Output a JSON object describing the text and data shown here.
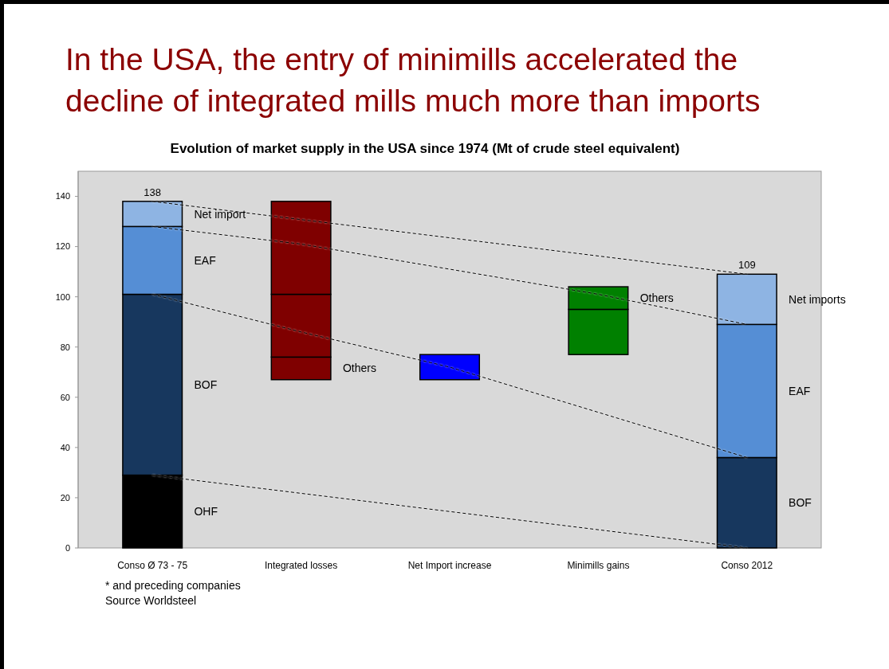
{
  "chart_data": {
    "type": "bar",
    "title": "In the USA, the entry of minimills accelerated the decline of integrated mills much more than imports",
    "subtitle": "Evolution of market supply in the USA since 1974 (Mt of crude steel equivalent)",
    "categories": [
      "Conso Ø 73 - 75",
      "Integrated losses",
      "Net Import increase",
      "Minimills gains",
      "Conso 2012"
    ],
    "series": [
      {
        "type": "line",
        "values": [
          138,
          null,
          null,
          null,
          109
        ],
        "color": "#000000",
        "line_style": "dashed"
      },
      {
        "type": "line",
        "values": [
          128,
          121,
          null,
          101,
          89
        ],
        "color": "#000000",
        "line_style": "dashed"
      },
      {
        "type": "line",
        "values": [
          101,
          86,
          72,
          null,
          36
        ],
        "color": "#000000",
        "line_style": "dashed"
      },
      {
        "type": "line",
        "values": [
          29,
          null,
          null,
          null,
          0
        ],
        "color": "#000000",
        "line_style": "dashed"
      },
      {
        "name": "OHF",
        "color": "#000000",
        "base": [
          0,
          null,
          null,
          null,
          null
        ],
        "values": [
          29,
          null,
          null,
          null,
          null
        ]
      },
      {
        "name": "BOF",
        "color": "#17375e",
        "base": [
          29,
          null,
          null,
          null,
          null
        ],
        "values": [
          72,
          null,
          null,
          null,
          null
        ]
      },
      {
        "name": "EAF",
        "color": "#558ed5",
        "base": [
          101,
          null,
          null,
          null,
          null
        ],
        "values": [
          27,
          null,
          null,
          null,
          null
        ]
      },
      {
        "name": "Net import",
        "color": "#8eb4e3",
        "base": [
          128,
          null,
          null,
          null,
          null
        ],
        "values": [
          10,
          null,
          null,
          null,
          null
        ]
      },
      {
        "name": "Others",
        "color": "#7f0000",
        "base": [
          null,
          67,
          null,
          null,
          null
        ],
        "values": [
          null,
          9,
          null,
          null,
          null
        ]
      },
      {
        "color": "#7f0000",
        "base": [
          null,
          76,
          null,
          null,
          null
        ],
        "values": [
          null,
          25,
          null,
          null,
          null
        ]
      },
      {
        "color": "#7f0000",
        "base": [
          null,
          101,
          null,
          null,
          null
        ],
        "values": [
          null,
          37,
          null,
          null,
          null
        ]
      },
      {
        "color": "#0000ff",
        "base": [
          null,
          null,
          67,
          null,
          null
        ],
        "values": [
          null,
          null,
          10,
          null,
          null
        ]
      },
      {
        "color": "#008000",
        "base": [
          null,
          null,
          null,
          77,
          null
        ],
        "values": [
          null,
          null,
          null,
          18,
          null
        ]
      },
      {
        "name": "Others",
        "color": "#008000",
        "base": [
          null,
          null,
          null,
          95,
          null
        ],
        "values": [
          null,
          null,
          null,
          9,
          null
        ]
      },
      {
        "name": "BOF",
        "color": "#17375e",
        "base": [
          null,
          null,
          null,
          null,
          0
        ],
        "values": [
          null,
          null,
          null,
          null,
          36
        ]
      },
      {
        "name": "EAF",
        "color": "#558ed5",
        "base": [
          null,
          null,
          null,
          null,
          36
        ],
        "values": [
          null,
          null,
          null,
          null,
          53
        ]
      },
      {
        "name": "Net imports",
        "color": "#8eb4e3",
        "base": [
          null,
          null,
          null,
          null,
          89
        ],
        "values": [
          null,
          null,
          null,
          null,
          20
        ]
      }
    ],
    "totals": [
      "138",
      null,
      null,
      null,
      "109"
    ],
    "ylim": [
      0,
      150
    ],
    "yticks": [
      0,
      20,
      40,
      60,
      80,
      100,
      120,
      140
    ],
    "legend": false,
    "annotations": [
      "* and preceding companies",
      "Source Worldsteel"
    ]
  }
}
